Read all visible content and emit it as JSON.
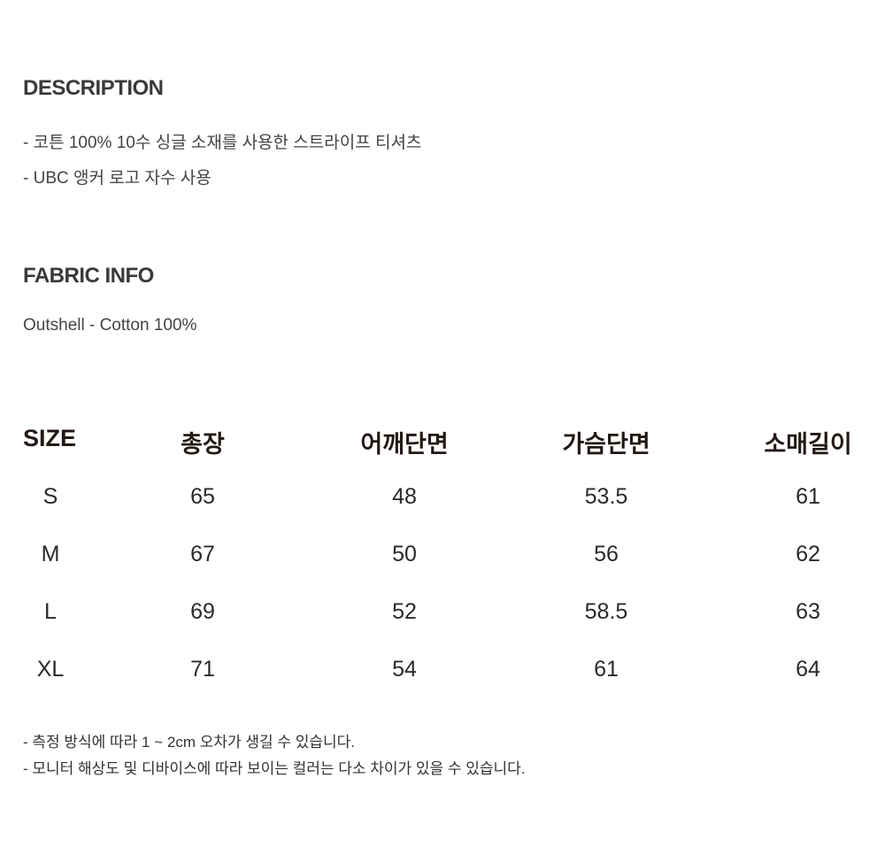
{
  "description": {
    "title": "DESCRIPTION",
    "lines": [
      "- 코튼 100% 10수 싱글 소재를 사용한 스트라이프 티셔츠",
      "- UBC 앵커 로고 자수 사용"
    ]
  },
  "fabric": {
    "title": "FABRIC INFO",
    "text": "Outshell - Cotton 100%"
  },
  "size_table": {
    "headers": [
      "SIZE",
      "총장",
      "어깨단면",
      "가슴단면",
      "소매길이"
    ],
    "rows": [
      [
        "S",
        "65",
        "48",
        "53.5",
        "61"
      ],
      [
        "M",
        "67",
        "50",
        "56",
        "62"
      ],
      [
        "L",
        "69",
        "52",
        "58.5",
        "63"
      ],
      [
        "XL",
        "71",
        "54",
        "61",
        "64"
      ]
    ]
  },
  "notes": [
    "- 측정 방식에 따라 1 ~ 2cm 오차가 생길 수 있습니다.",
    "- 모니터 해상도 및 디바이스에 따라 보이는 컬러는 다소 차이가 있을 수 있습니다."
  ]
}
